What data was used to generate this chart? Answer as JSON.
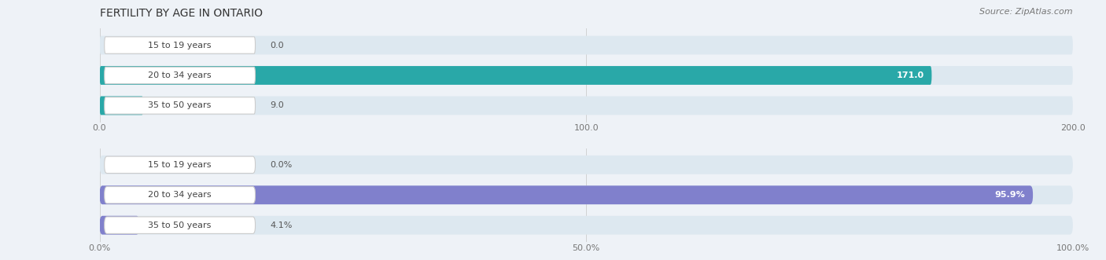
{
  "title": "FERTILITY BY AGE IN ONTARIO",
  "source": "Source: ZipAtlas.com",
  "chart1": {
    "categories": [
      "15 to 19 years",
      "20 to 34 years",
      "35 to 50 years"
    ],
    "values": [
      0.0,
      171.0,
      9.0
    ],
    "xlim": [
      0,
      200
    ],
    "xticks": [
      0.0,
      100.0,
      200.0
    ],
    "xtick_labels": [
      "0.0",
      "100.0",
      "200.0"
    ],
    "bar_color_main": "#29a8a8",
    "bar_bg_color": "#dde8f0",
    "label_inside_color": "#ffffff",
    "label_outside_color": "#555555",
    "value_labels": [
      "0.0",
      "171.0",
      "9.0"
    ]
  },
  "chart2": {
    "categories": [
      "15 to 19 years",
      "20 to 34 years",
      "35 to 50 years"
    ],
    "values": [
      0.0,
      95.9,
      4.1
    ],
    "xlim": [
      0,
      100
    ],
    "xticks": [
      0.0,
      50.0,
      100.0
    ],
    "xtick_labels": [
      "0.0%",
      "50.0%",
      "100.0%"
    ],
    "bar_color_main": "#8080cc",
    "bar_bg_color": "#dde8f0",
    "label_inside_color": "#ffffff",
    "label_outside_color": "#555555",
    "value_labels": [
      "0.0%",
      "95.9%",
      "4.1%"
    ]
  },
  "title_fontsize": 10,
  "source_fontsize": 8,
  "label_fontsize": 8,
  "tick_fontsize": 8,
  "category_fontsize": 8,
  "bar_height": 0.62,
  "background_color": "#eef2f7"
}
